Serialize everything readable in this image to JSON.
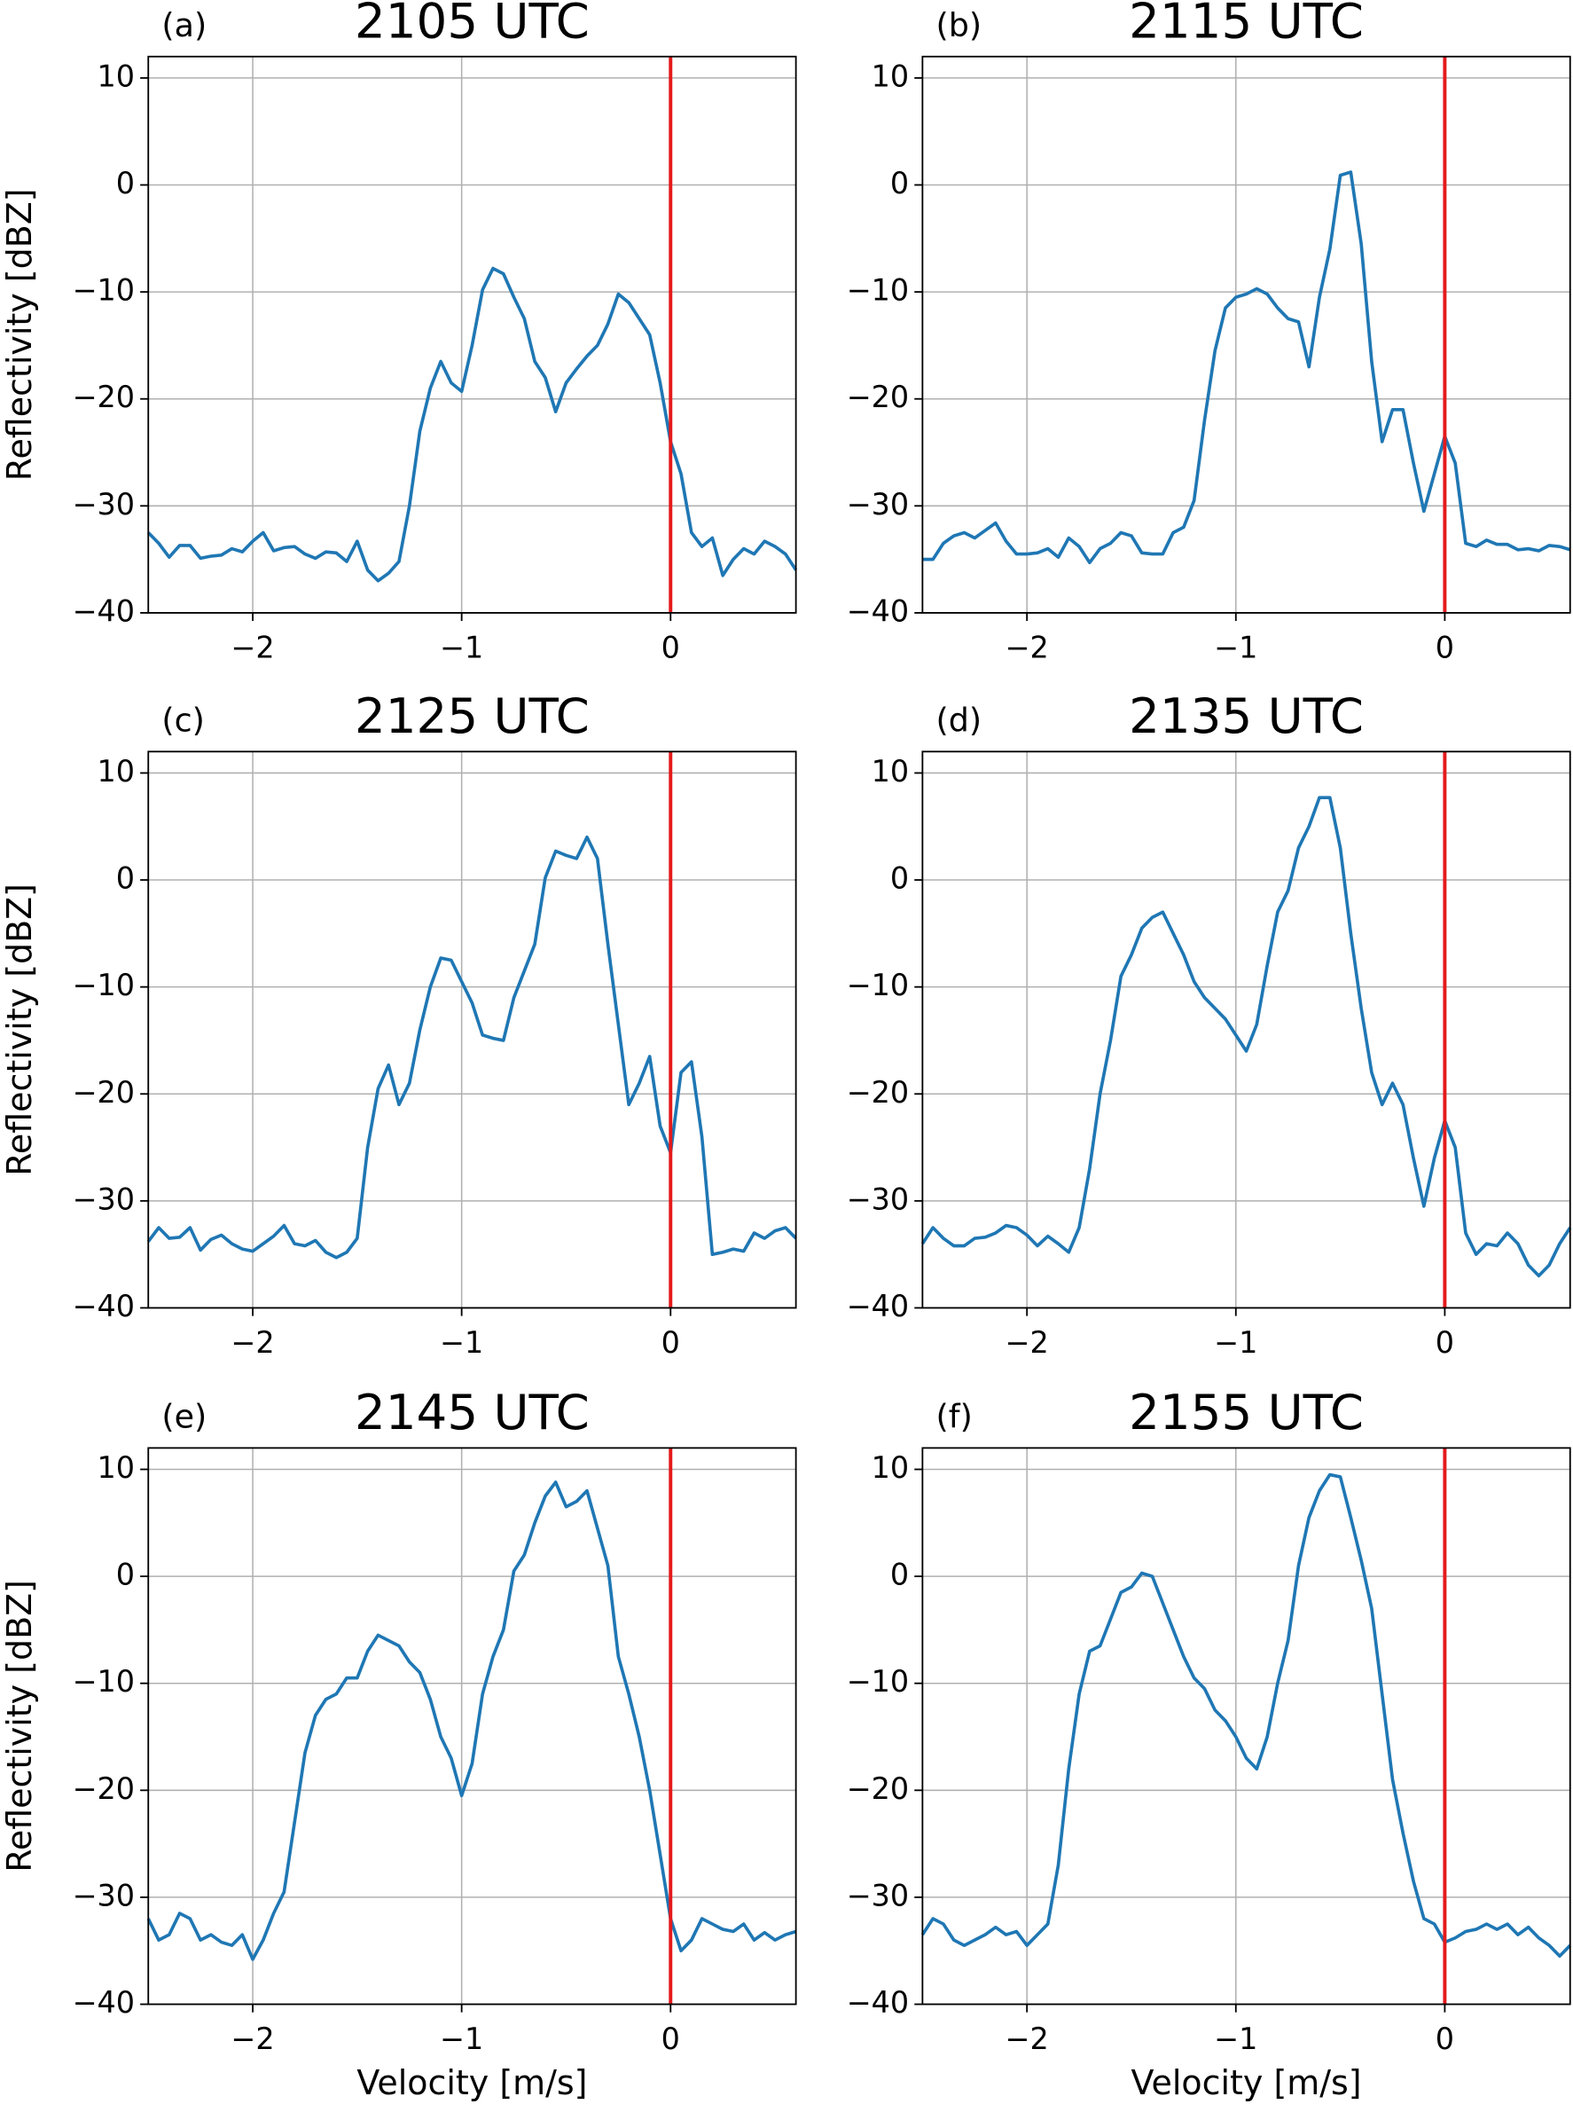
{
  "chart_data": [
    {
      "type": "line",
      "panel_label": "(a)",
      "title": "2105 UTC",
      "y_label": "Reflectivity [dBZ]",
      "x": [
        -2.5,
        -2.45,
        -2.4,
        -2.35,
        -2.3,
        -2.25,
        -2.2,
        -2.15,
        -2.1,
        -2.05,
        -2,
        -1.95,
        -1.9,
        -1.85,
        -1.8,
        -1.75,
        -1.7,
        -1.65,
        -1.6,
        -1.55,
        -1.5,
        -1.45,
        -1.4,
        -1.35,
        -1.3,
        -1.25,
        -1.2,
        -1.15,
        -1.1,
        -1.05,
        -1,
        -0.95,
        -0.9,
        -0.85,
        -0.8,
        -0.75,
        -0.7,
        -0.65,
        -0.6,
        -0.55,
        -0.5,
        -0.45,
        -0.4,
        -0.35,
        -0.3,
        -0.25,
        -0.2,
        -0.15,
        -0.1,
        -0.05,
        0,
        0.05,
        0.1,
        0.15,
        0.2,
        0.25,
        0.3,
        0.35,
        0.4,
        0.45,
        0.5,
        0.55,
        0.6
      ],
      "values": [
        -32.5,
        -33.5,
        -34.8,
        -33.7,
        -33.7,
        -34.9,
        -34.7,
        -34.6,
        -34.0,
        -34.3,
        -33.3,
        -32.5,
        -34.2,
        -33.9,
        -33.8,
        -34.5,
        -34.9,
        -34.3,
        -34.4,
        -35.2,
        -33.3,
        -36.0,
        -37.0,
        -36.3,
        -35.2,
        -30.0,
        -23.0,
        -19.0,
        -16.5,
        -18.5,
        -19.3,
        -15.0,
        -9.8,
        -7.8,
        -8.3,
        -10.5,
        -12.5,
        -16.5,
        -18.0,
        -21.2,
        -18.5,
        -17.2,
        -16.0,
        -15.0,
        -13.0,
        -10.2,
        -11.0,
        -12.5,
        -14.0,
        -18.5,
        -24.0,
        -27.0,
        -32.5,
        -33.8,
        -33.0,
        -36.5,
        -35.0,
        -34.0,
        -34.5,
        -33.3,
        -33.8,
        -34.5,
        -36.0
      ],
      "color": "#1f77b4",
      "vline": 0,
      "vline_color": "#e41a1c",
      "grid": true,
      "xlim": [
        -2.5,
        0.6
      ],
      "xticks": [
        {
          "value": -2,
          "label": "−2"
        },
        {
          "value": -1,
          "label": "−1"
        },
        0
      ],
      "ylim": [
        -40,
        12
      ],
      "yticks": [
        {
          "value": -40,
          "label": "−40"
        },
        {
          "value": -30,
          "label": "−30"
        },
        {
          "value": -20,
          "label": "−20"
        },
        {
          "value": -10,
          "label": "−10"
        },
        0,
        10
      ]
    },
    {
      "type": "line",
      "panel_label": "(b)",
      "title": "2115 UTC",
      "x": [
        -2.5,
        -2.45,
        -2.4,
        -2.35,
        -2.3,
        -2.25,
        -2.2,
        -2.15,
        -2.1,
        -2.05,
        -2,
        -1.95,
        -1.9,
        -1.85,
        -1.8,
        -1.75,
        -1.7,
        -1.65,
        -1.6,
        -1.55,
        -1.5,
        -1.45,
        -1.4,
        -1.35,
        -1.3,
        -1.25,
        -1.2,
        -1.15,
        -1.1,
        -1.05,
        -1,
        -0.95,
        -0.9,
        -0.85,
        -0.8,
        -0.75,
        -0.7,
        -0.65,
        -0.6,
        -0.55,
        -0.5,
        -0.45,
        -0.4,
        -0.35,
        -0.3,
        -0.25,
        -0.2,
        -0.15,
        -0.1,
        -0.05,
        0,
        0.05,
        0.1,
        0.15,
        0.2,
        0.25,
        0.3,
        0.35,
        0.4,
        0.45,
        0.5,
        0.55,
        0.6
      ],
      "values": [
        -35,
        -35,
        -33.5,
        -32.8,
        -32.5,
        -33,
        -32.3,
        -31.6,
        -33.3,
        -34.5,
        -34.5,
        -34.4,
        -34,
        -34.8,
        -33,
        -33.8,
        -35.3,
        -34,
        -33.5,
        -32.5,
        -32.8,
        -34.4,
        -34.5,
        -34.5,
        -32.5,
        -32,
        -29.5,
        -22,
        -15.5,
        -11.5,
        -10.5,
        -10.2,
        -9.7,
        -10.2,
        -11.5,
        -12.5,
        -12.8,
        -17,
        -10.5,
        -6,
        0.9,
        1.2,
        -5.5,
        -16.5,
        -24,
        -21,
        -21,
        -26,
        -30.5,
        -27,
        -23.5,
        -26,
        -33.5,
        -33.8,
        -33.2,
        -33.6,
        -33.6,
        -34.1,
        -34,
        -34.2,
        -33.7,
        -33.8,
        -34.1
      ],
      "color": "#1f77b4",
      "vline": 0,
      "vline_color": "#e41a1c",
      "grid": true,
      "xlim": [
        -2.5,
        0.6
      ],
      "xticks": [
        {
          "value": -2,
          "label": "−2"
        },
        {
          "value": -1,
          "label": "−1"
        },
        0
      ],
      "ylim": [
        -40,
        12
      ],
      "yticks": [
        {
          "value": -40,
          "label": "−40"
        },
        {
          "value": -30,
          "label": "−30"
        },
        {
          "value": -20,
          "label": "−20"
        },
        {
          "value": -10,
          "label": "−10"
        },
        0,
        10
      ]
    },
    {
      "type": "line",
      "panel_label": "(c)",
      "title": "2125 UTC",
      "y_label": "Reflectivity [dBZ]",
      "x": [
        -2.5,
        -2.45,
        -2.4,
        -2.35,
        -2.3,
        -2.25,
        -2.2,
        -2.15,
        -2.1,
        -2.05,
        -2,
        -1.95,
        -1.9,
        -1.85,
        -1.8,
        -1.75,
        -1.7,
        -1.65,
        -1.6,
        -1.55,
        -1.5,
        -1.45,
        -1.4,
        -1.35,
        -1.3,
        -1.25,
        -1.2,
        -1.15,
        -1.1,
        -1.05,
        -1,
        -0.95,
        -0.9,
        -0.85,
        -0.8,
        -0.75,
        -0.7,
        -0.65,
        -0.6,
        -0.55,
        -0.5,
        -0.45,
        -0.4,
        -0.35,
        -0.3,
        -0.25,
        -0.2,
        -0.15,
        -0.1,
        -0.05,
        0,
        0.05,
        0.1,
        0.15,
        0.2,
        0.25,
        0.3,
        0.35,
        0.4,
        0.45,
        0.5,
        0.55,
        0.6
      ],
      "values": [
        -33.8,
        -32.5,
        -33.5,
        -33.4,
        -32.5,
        -34.6,
        -33.6,
        -33.2,
        -34.0,
        -34.5,
        -34.7,
        -34.0,
        -33.3,
        -32.3,
        -34.0,
        -34.2,
        -33.7,
        -34.8,
        -35.3,
        -34.8,
        -33.5,
        -25.0,
        -19.5,
        -17.3,
        -21.0,
        -19.0,
        -14.0,
        -10.0,
        -7.3,
        -7.5,
        -9.5,
        -11.5,
        -14.5,
        -14.8,
        -15.0,
        -11.0,
        -8.5,
        -6.0,
        0.2,
        2.7,
        2.3,
        2.0,
        4.0,
        2.0,
        -6.0,
        -13.5,
        -21.0,
        -19.0,
        -16.5,
        -23.0,
        -25.5,
        -18.0,
        -17.0,
        -24.0,
        -35.0,
        -34.8,
        -34.5,
        -34.7,
        -33.0,
        -33.5,
        -32.8,
        -32.5,
        -33.5
      ],
      "color": "#1f77b4",
      "vline": 0,
      "vline_color": "#e41a1c",
      "grid": true,
      "xlim": [
        -2.5,
        0.6
      ],
      "xticks": [
        {
          "value": -2,
          "label": "−2"
        },
        {
          "value": -1,
          "label": "−1"
        },
        0
      ],
      "ylim": [
        -40,
        12
      ],
      "yticks": [
        {
          "value": -40,
          "label": "−40"
        },
        {
          "value": -30,
          "label": "−30"
        },
        {
          "value": -20,
          "label": "−20"
        },
        {
          "value": -10,
          "label": "−10"
        },
        0,
        10
      ]
    },
    {
      "type": "line",
      "panel_label": "(d)",
      "title": "2135 UTC",
      "x": [
        -2.5,
        -2.45,
        -2.4,
        -2.35,
        -2.3,
        -2.25,
        -2.2,
        -2.15,
        -2.1,
        -2.05,
        -2,
        -1.95,
        -1.9,
        -1.85,
        -1.8,
        -1.75,
        -1.7,
        -1.65,
        -1.6,
        -1.55,
        -1.5,
        -1.45,
        -1.4,
        -1.35,
        -1.3,
        -1.25,
        -1.2,
        -1.15,
        -1.1,
        -1.05,
        -1,
        -0.95,
        -0.9,
        -0.85,
        -0.8,
        -0.75,
        -0.7,
        -0.65,
        -0.6,
        -0.55,
        -0.5,
        -0.45,
        -0.4,
        -0.35,
        -0.3,
        -0.25,
        -0.2,
        -0.15,
        -0.1,
        -0.05,
        0,
        0.05,
        0.1,
        0.15,
        0.2,
        0.25,
        0.3,
        0.35,
        0.4,
        0.45,
        0.5,
        0.55,
        0.6
      ],
      "values": [
        -34,
        -32.5,
        -33.5,
        -34.2,
        -34.2,
        -33.5,
        -33.4,
        -33,
        -32.3,
        -32.5,
        -33.2,
        -34.2,
        -33.3,
        -34,
        -34.8,
        -32.5,
        -27,
        -20,
        -15,
        -9,
        -7,
        -4.5,
        -3.5,
        -3,
        -5,
        -7,
        -9.5,
        -11,
        -12,
        -13,
        -14.5,
        -16,
        -13.5,
        -8,
        -3,
        -1,
        3,
        5,
        7.7,
        7.7,
        3,
        -5,
        -12,
        -18,
        -21,
        -19,
        -21,
        -26,
        -30.5,
        -26,
        -22.5,
        -25,
        -33,
        -35,
        -34,
        -34.2,
        -33,
        -34,
        -36,
        -37,
        -36,
        -34,
        -32.5
      ],
      "color": "#1f77b4",
      "vline": 0,
      "vline_color": "#e41a1c",
      "grid": true,
      "xlim": [
        -2.5,
        0.6
      ],
      "xticks": [
        {
          "value": -2,
          "label": "−2"
        },
        {
          "value": -1,
          "label": "−1"
        },
        0
      ],
      "ylim": [
        -40,
        12
      ],
      "yticks": [
        {
          "value": -40,
          "label": "−40"
        },
        {
          "value": -30,
          "label": "−30"
        },
        {
          "value": -20,
          "label": "−20"
        },
        {
          "value": -10,
          "label": "−10"
        },
        0,
        10
      ]
    },
    {
      "type": "line",
      "panel_label": "(e)",
      "title": "2145 UTC",
      "y_label": "Reflectivity [dBZ]",
      "x_label": "Velocity [m/s]",
      "x": [
        -2.5,
        -2.45,
        -2.4,
        -2.35,
        -2.3,
        -2.25,
        -2.2,
        -2.15,
        -2.1,
        -2.05,
        -2,
        -1.95,
        -1.9,
        -1.85,
        -1.8,
        -1.75,
        -1.7,
        -1.65,
        -1.6,
        -1.55,
        -1.5,
        -1.45,
        -1.4,
        -1.35,
        -1.3,
        -1.25,
        -1.2,
        -1.15,
        -1.1,
        -1.05,
        -1,
        -0.95,
        -0.9,
        -0.85,
        -0.8,
        -0.75,
        -0.7,
        -0.65,
        -0.6,
        -0.55,
        -0.5,
        -0.45,
        -0.4,
        -0.35,
        -0.3,
        -0.25,
        -0.2,
        -0.15,
        -0.1,
        -0.05,
        0,
        0.05,
        0.1,
        0.15,
        0.2,
        0.25,
        0.3,
        0.35,
        0.4,
        0.45,
        0.5,
        0.55,
        0.6
      ],
      "values": [
        -32,
        -34,
        -33.5,
        -31.5,
        -32,
        -34,
        -33.5,
        -34.2,
        -34.5,
        -33.5,
        -35.8,
        -34,
        -31.5,
        -29.5,
        -23,
        -16.5,
        -13,
        -11.5,
        -11,
        -9.5,
        -9.5,
        -7,
        -5.5,
        -6,
        -6.5,
        -8,
        -9,
        -11.5,
        -15,
        -17,
        -20.5,
        -17.5,
        -11,
        -7.5,
        -5,
        0.5,
        2,
        5,
        7.5,
        8.8,
        6.5,
        7,
        8,
        4.5,
        1,
        -7.5,
        -11,
        -15,
        -20,
        -26,
        -32,
        -35,
        -34,
        -32,
        -32.5,
        -33,
        -33.2,
        -32.5,
        -34,
        -33.3,
        -34,
        -33.5,
        -33.2
      ],
      "color": "#1f77b4",
      "vline": 0,
      "vline_color": "#e41a1c",
      "grid": true,
      "xlim": [
        -2.5,
        0.6
      ],
      "xticks": [
        {
          "value": -2,
          "label": "−2"
        },
        {
          "value": -1,
          "label": "−1"
        },
        0
      ],
      "ylim": [
        -40,
        12
      ],
      "yticks": [
        {
          "value": -40,
          "label": "−40"
        },
        {
          "value": -30,
          "label": "−30"
        },
        {
          "value": -20,
          "label": "−20"
        },
        {
          "value": -10,
          "label": "−10"
        },
        0,
        10
      ]
    },
    {
      "type": "line",
      "panel_label": "(f)",
      "title": "2155 UTC",
      "x_label": "Velocity [m/s]",
      "x": [
        -2.5,
        -2.45,
        -2.4,
        -2.35,
        -2.3,
        -2.25,
        -2.2,
        -2.15,
        -2.1,
        -2.05,
        -2,
        -1.95,
        -1.9,
        -1.85,
        -1.8,
        -1.75,
        -1.7,
        -1.65,
        -1.6,
        -1.55,
        -1.5,
        -1.45,
        -1.4,
        -1.35,
        -1.3,
        -1.25,
        -1.2,
        -1.15,
        -1.1,
        -1.05,
        -1,
        -0.95,
        -0.9,
        -0.85,
        -0.8,
        -0.75,
        -0.7,
        -0.65,
        -0.6,
        -0.55,
        -0.5,
        -0.45,
        -0.4,
        -0.35,
        -0.3,
        -0.25,
        -0.2,
        -0.15,
        -0.1,
        -0.05,
        0,
        0.05,
        0.1,
        0.15,
        0.2,
        0.25,
        0.3,
        0.35,
        0.4,
        0.45,
        0.5,
        0.55,
        0.6
      ],
      "values": [
        -33.5,
        -32,
        -32.5,
        -34,
        -34.5,
        -34,
        -33.5,
        -32.8,
        -33.5,
        -33.2,
        -34.5,
        -33.5,
        -32.5,
        -27,
        -18,
        -11,
        -7,
        -6.5,
        -4,
        -1.5,
        -1,
        0.3,
        0,
        -2.5,
        -5,
        -7.5,
        -9.5,
        -10.5,
        -12.5,
        -13.5,
        -15,
        -17,
        -18,
        -15,
        -10,
        -6,
        1,
        5.5,
        8,
        9.5,
        9.3,
        5.5,
        1.5,
        -3,
        -11,
        -19,
        -24,
        -28.5,
        -32,
        -32.5,
        -34.2,
        -33.8,
        -33.2,
        -33,
        -32.5,
        -33,
        -32.5,
        -33.5,
        -32.8,
        -33.8,
        -34.5,
        -35.5,
        -34.5
      ],
      "color": "#1f77b4",
      "vline": 0,
      "vline_color": "#e41a1c",
      "grid": true,
      "xlim": [
        -2.5,
        0.6
      ],
      "xticks": [
        {
          "value": -2,
          "label": "−2"
        },
        {
          "value": -1,
          "label": "−1"
        },
        0
      ],
      "ylim": [
        -40,
        12
      ],
      "yticks": [
        {
          "value": -40,
          "label": "−40"
        },
        {
          "value": -30,
          "label": "−30"
        },
        {
          "value": -20,
          "label": "−20"
        },
        {
          "value": -10,
          "label": "−10"
        },
        0,
        10
      ]
    }
  ]
}
